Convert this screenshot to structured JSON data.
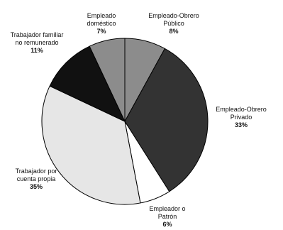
{
  "chart_data": {
    "type": "pie",
    "slices": [
      {
        "label_lines": [
          "Empleado-Obrero",
          "Público"
        ],
        "value": 8,
        "value_label": "8%",
        "color": "#8c8c8c"
      },
      {
        "label_lines": [
          "Empleado-Obrero",
          "Privado"
        ],
        "value": 33,
        "value_label": "33%",
        "color": "#333333"
      },
      {
        "label_lines": [
          "Empleador o",
          "Patrón"
        ],
        "value": 6,
        "value_label": "6%",
        "color": "#ffffff"
      },
      {
        "label_lines": [
          "Trabajador por",
          "cuenta propia"
        ],
        "value": 35,
        "value_label": "35%",
        "color": "#e6e6e6"
      },
      {
        "label_lines": [
          "Trabajador familiar",
          "no remunerado"
        ],
        "value": 11,
        "value_label": "11%",
        "color": "#111111"
      },
      {
        "label_lines": [
          "Empleado",
          "doméstico"
        ],
        "value": 7,
        "value_label": "7%",
        "color": "#8c8c8c"
      }
    ],
    "start": "12 o'clock",
    "direction": "clockwise",
    "legend": "none"
  }
}
